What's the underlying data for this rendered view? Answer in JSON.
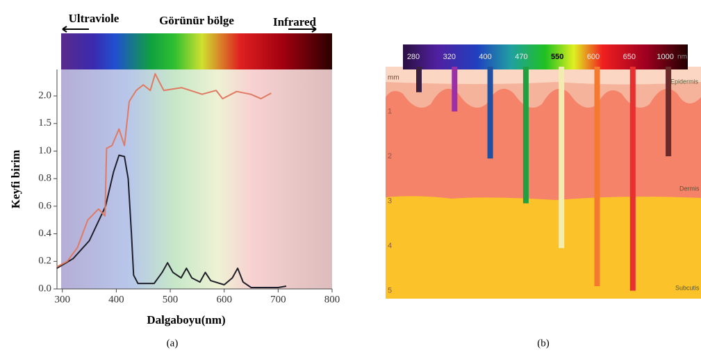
{
  "chart_data": [
    {
      "type": "line",
      "annotations": [
        "Ultraviole",
        "Görünür bölge",
        "Infrared"
      ],
      "x_label": "Dalgaboyu(nm)",
      "y_label": "Keyfi birim",
      "caption": "(a)",
      "xlim": [
        290,
        800
      ],
      "xticks": [
        300,
        400,
        500,
        600,
        700,
        800
      ],
      "ylim": [
        0,
        2.5
      ],
      "yticks": [
        {
          "value": 0,
          "label": "0.0"
        },
        {
          "value": 0.2,
          "label": "0.2"
        },
        {
          "value": 0.4,
          "label": "0.4"
        },
        {
          "value": 0.6,
          "label": "0.6"
        },
        {
          "value": 0.8,
          "label": "0.8"
        },
        {
          "value": 1,
          "label": "1.0"
        },
        {
          "value": 1.5,
          "label": "1.5"
        },
        {
          "value": 2,
          "label": "2.0"
        }
      ],
      "series": [
        {
          "color": "#1e1e28",
          "x": [
            290,
            320,
            350,
            380,
            395,
            405,
            415,
            422,
            428,
            432,
            440,
            470,
            485,
            495,
            505,
            520,
            530,
            540,
            555,
            565,
            575,
            600,
            615,
            625,
            635,
            650,
            700,
            715
          ],
          "values": [
            0.15,
            0.22,
            0.35,
            0.6,
            0.85,
            0.97,
            0.96,
            0.8,
            0.4,
            0.1,
            0.04,
            0.04,
            0.12,
            0.19,
            0.12,
            0.08,
            0.15,
            0.08,
            0.05,
            0.12,
            0.06,
            0.03,
            0.08,
            0.15,
            0.05,
            0.01,
            0.01,
            0.02
          ]
        },
        {
          "color": "#e07a62",
          "x": [
            290,
            309,
            328,
            347,
            367,
            379,
            382,
            392,
            405,
            415,
            424,
            437,
            450,
            463,
            472,
            488,
            521,
            559,
            585,
            597,
            623,
            649,
            668,
            687
          ],
          "values": [
            0.16,
            0.2,
            0.3,
            0.5,
            0.58,
            0.53,
            1.05,
            1.1,
            1.4,
            1.1,
            1.9,
            2.1,
            2.2,
            2.1,
            2.4,
            2.1,
            2.15,
            2.03,
            2.1,
            1.95,
            2.08,
            2.03,
            1.95,
            2.05
          ]
        }
      ]
    },
    {
      "type": "bar",
      "categories": [
        "280",
        "320",
        "400",
        "470",
        "550",
        "600",
        "650",
        "1000"
      ],
      "unit_label": "nm",
      "y_label": "mm",
      "caption": "(b)",
      "layers": [
        "Epidermis",
        "Dermis",
        "Subcutis"
      ],
      "values": [
        0.57,
        1.0,
        2.05,
        3.05,
        4.05,
        4.9,
        5.0,
        2.0
      ],
      "colors": [
        "#3a2040",
        "#9b2fa8",
        "#2050a0",
        "#20a040",
        "#f3ecb0",
        "#f47a30",
        "#e83030",
        "#6a2a2a"
      ],
      "ylim": [
        0,
        5.2
      ],
      "yticks": [
        1,
        2,
        3,
        4,
        5
      ],
      "y_reversed": true
    }
  ]
}
